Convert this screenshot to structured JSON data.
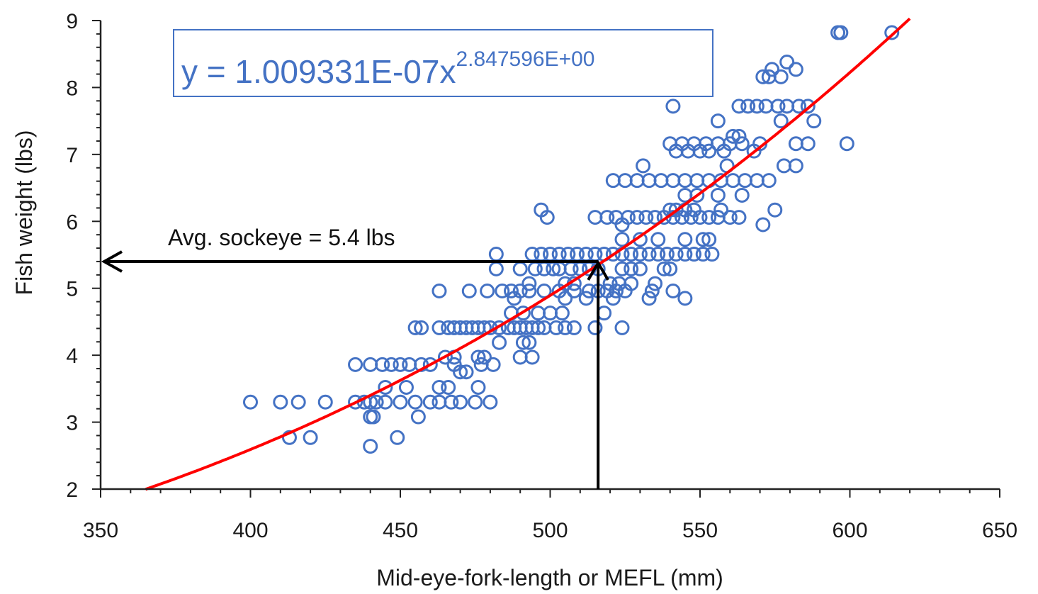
{
  "chart_data": {
    "type": "scatter",
    "title": "",
    "xlabel": "Mid-eye-fork-length or MEFL (mm)",
    "ylabel": "Fish weight (lbs)",
    "xlim": [
      350,
      650
    ],
    "ylim": [
      2,
      9
    ],
    "x_ticks": [
      "350",
      "400",
      "450",
      "500",
      "550",
      "600",
      "650"
    ],
    "y_ticks": [
      "2",
      "3",
      "4",
      "5",
      "6",
      "7",
      "8",
      "9"
    ],
    "grid": false,
    "legend": "none",
    "colors": {
      "points": "#4472C4",
      "trendline": "#FF0000",
      "annotation": "#000000",
      "equation": "#4472C4"
    },
    "equation": {
      "base": "y = 1.009331E-07x",
      "exponent": "2.847596E+00"
    },
    "trendline": {
      "type": "power",
      "a": 1.009331e-07,
      "b": 2.847596,
      "x_range": [
        365,
        620
      ]
    },
    "annotation": {
      "text": "Avg. sockeye = 5.4 lbs",
      "x": 516,
      "y": 5.4
    },
    "points": [
      [
        400,
        3.3
      ],
      [
        410,
        3.3
      ],
      [
        416,
        3.3
      ],
      [
        425,
        3.3
      ],
      [
        413,
        2.77
      ],
      [
        420,
        2.77
      ],
      [
        435,
        3.3
      ],
      [
        438,
        3.3
      ],
      [
        440,
        3.3
      ],
      [
        442,
        3.3
      ],
      [
        445,
        3.3
      ],
      [
        450,
        3.3
      ],
      [
        455,
        3.3
      ],
      [
        460,
        3.3
      ],
      [
        463,
        3.3
      ],
      [
        467,
        3.3
      ],
      [
        470,
        3.3
      ],
      [
        475,
        3.3
      ],
      [
        480,
        3.3
      ],
      [
        440,
        3.08
      ],
      [
        441,
        3.08
      ],
      [
        456,
        3.08
      ],
      [
        440,
        2.64
      ],
      [
        449,
        2.77
      ],
      [
        435,
        3.86
      ],
      [
        440,
        3.86
      ],
      [
        444,
        3.86
      ],
      [
        447,
        3.86
      ],
      [
        450,
        3.86
      ],
      [
        453,
        3.86
      ],
      [
        457,
        3.86
      ],
      [
        460,
        3.86
      ],
      [
        468,
        3.86
      ],
      [
        477,
        3.86
      ],
      [
        481,
        3.86
      ],
      [
        445,
        3.52
      ],
      [
        452,
        3.52
      ],
      [
        463,
        3.52
      ],
      [
        466,
        3.52
      ],
      [
        476,
        3.52
      ],
      [
        470,
        3.75
      ],
      [
        472,
        3.75
      ],
      [
        476,
        3.97
      ],
      [
        478,
        3.97
      ],
      [
        468,
        3.97
      ],
      [
        465,
        3.97
      ],
      [
        455,
        4.41
      ],
      [
        457,
        4.41
      ],
      [
        463,
        4.41
      ],
      [
        466,
        4.41
      ],
      [
        468,
        4.41
      ],
      [
        470,
        4.41
      ],
      [
        472,
        4.41
      ],
      [
        474,
        4.41
      ],
      [
        476,
        4.41
      ],
      [
        478,
        4.41
      ],
      [
        480,
        4.41
      ],
      [
        483,
        4.41
      ],
      [
        486,
        4.41
      ],
      [
        488,
        4.41
      ],
      [
        490,
        4.41
      ],
      [
        492,
        4.41
      ],
      [
        494,
        4.41
      ],
      [
        496,
        4.41
      ],
      [
        498,
        4.41
      ],
      [
        502,
        4.41
      ],
      [
        505,
        4.41
      ],
      [
        508,
        4.41
      ],
      [
        515,
        4.41
      ],
      [
        524,
        4.41
      ],
      [
        483,
        4.19
      ],
      [
        491,
        4.19
      ],
      [
        493,
        4.19
      ],
      [
        490,
        3.97
      ],
      [
        494,
        3.97
      ],
      [
        487,
        4.63
      ],
      [
        491,
        4.63
      ],
      [
        496,
        4.63
      ],
      [
        500,
        4.63
      ],
      [
        504,
        4.63
      ],
      [
        518,
        4.63
      ],
      [
        463,
        4.96
      ],
      [
        473,
        4.96
      ],
      [
        479,
        4.96
      ],
      [
        484,
        4.96
      ],
      [
        487,
        4.96
      ],
      [
        490,
        4.96
      ],
      [
        493,
        4.96
      ],
      [
        498,
        4.96
      ],
      [
        503,
        4.96
      ],
      [
        508,
        4.96
      ],
      [
        513,
        4.96
      ],
      [
        516,
        4.96
      ],
      [
        519,
        4.96
      ],
      [
        522,
        4.96
      ],
      [
        525,
        4.96
      ],
      [
        534,
        4.96
      ],
      [
        541,
        4.96
      ],
      [
        488,
        4.85
      ],
      [
        505,
        4.85
      ],
      [
        512,
        4.85
      ],
      [
        521,
        4.85
      ],
      [
        533,
        4.85
      ],
      [
        545,
        4.85
      ],
      [
        482,
        5.29
      ],
      [
        490,
        5.29
      ],
      [
        495,
        5.29
      ],
      [
        498,
        5.29
      ],
      [
        501,
        5.29
      ],
      [
        503,
        5.29
      ],
      [
        507,
        5.29
      ],
      [
        510,
        5.29
      ],
      [
        513,
        5.29
      ],
      [
        516,
        5.29
      ],
      [
        524,
        5.29
      ],
      [
        527,
        5.29
      ],
      [
        530,
        5.29
      ],
      [
        538,
        5.29
      ],
      [
        540,
        5.29
      ],
      [
        493,
        5.07
      ],
      [
        505,
        5.07
      ],
      [
        508,
        5.07
      ],
      [
        520,
        5.07
      ],
      [
        523,
        5.07
      ],
      [
        527,
        5.07
      ],
      [
        535,
        5.07
      ],
      [
        482,
        5.51
      ],
      [
        494,
        5.51
      ],
      [
        497,
        5.51
      ],
      [
        500,
        5.51
      ],
      [
        503,
        5.51
      ],
      [
        506,
        5.51
      ],
      [
        509,
        5.51
      ],
      [
        512,
        5.51
      ],
      [
        515,
        5.51
      ],
      [
        518,
        5.51
      ],
      [
        521,
        5.51
      ],
      [
        524,
        5.51
      ],
      [
        527,
        5.51
      ],
      [
        530,
        5.51
      ],
      [
        533,
        5.51
      ],
      [
        536,
        5.51
      ],
      [
        539,
        5.51
      ],
      [
        542,
        5.51
      ],
      [
        545,
        5.51
      ],
      [
        548,
        5.51
      ],
      [
        551,
        5.51
      ],
      [
        554,
        5.51
      ],
      [
        524,
        5.73
      ],
      [
        530,
        5.73
      ],
      [
        536,
        5.73
      ],
      [
        545,
        5.73
      ],
      [
        551,
        5.73
      ],
      [
        553,
        5.73
      ],
      [
        515,
        6.06
      ],
      [
        519,
        6.06
      ],
      [
        522,
        6.06
      ],
      [
        526,
        6.06
      ],
      [
        529,
        6.06
      ],
      [
        532,
        6.06
      ],
      [
        535,
        6.06
      ],
      [
        538,
        6.06
      ],
      [
        541,
        6.06
      ],
      [
        544,
        6.06
      ],
      [
        547,
        6.06
      ],
      [
        550,
        6.06
      ],
      [
        553,
        6.06
      ],
      [
        556,
        6.06
      ],
      [
        560,
        6.06
      ],
      [
        497,
        6.17
      ],
      [
        499,
        6.06
      ],
      [
        524,
        5.95
      ],
      [
        540,
        6.17
      ],
      [
        542,
        6.17
      ],
      [
        545,
        6.17
      ],
      [
        548,
        6.17
      ],
      [
        557,
        6.17
      ],
      [
        563,
        6.06
      ],
      [
        571,
        5.95
      ],
      [
        575,
        6.17
      ],
      [
        521,
        6.61
      ],
      [
        525,
        6.61
      ],
      [
        529,
        6.61
      ],
      [
        533,
        6.61
      ],
      [
        537,
        6.61
      ],
      [
        541,
        6.61
      ],
      [
        545,
        6.61
      ],
      [
        549,
        6.61
      ],
      [
        553,
        6.61
      ],
      [
        557,
        6.61
      ],
      [
        561,
        6.61
      ],
      [
        565,
        6.61
      ],
      [
        569,
        6.61
      ],
      [
        573,
        6.61
      ],
      [
        531,
        6.83
      ],
      [
        545,
        6.39
      ],
      [
        549,
        6.39
      ],
      [
        556,
        6.39
      ],
      [
        564,
        6.39
      ],
      [
        559,
        6.83
      ],
      [
        578,
        6.83
      ],
      [
        582,
        6.83
      ],
      [
        542,
        7.05
      ],
      [
        546,
        7.05
      ],
      [
        550,
        7.05
      ],
      [
        553,
        7.05
      ],
      [
        558,
        7.05
      ],
      [
        568,
        7.05
      ],
      [
        540,
        7.16
      ],
      [
        544,
        7.16
      ],
      [
        548,
        7.16
      ],
      [
        552,
        7.16
      ],
      [
        556,
        7.16
      ],
      [
        560,
        7.16
      ],
      [
        564,
        7.16
      ],
      [
        570,
        7.16
      ],
      [
        582,
        7.16
      ],
      [
        586,
        7.16
      ],
      [
        599,
        7.16
      ],
      [
        561,
        7.27
      ],
      [
        563,
        7.27
      ],
      [
        541,
        7.72
      ],
      [
        563,
        7.72
      ],
      [
        566,
        7.72
      ],
      [
        569,
        7.72
      ],
      [
        572,
        7.72
      ],
      [
        576,
        7.72
      ],
      [
        579,
        7.72
      ],
      [
        583,
        7.72
      ],
      [
        586,
        7.72
      ],
      [
        577,
        7.5
      ],
      [
        588,
        7.5
      ],
      [
        556,
        7.5
      ],
      [
        571,
        8.16
      ],
      [
        573,
        8.16
      ],
      [
        577,
        8.16
      ],
      [
        574,
        8.27
      ],
      [
        579,
        8.38
      ],
      [
        582,
        8.27
      ],
      [
        596,
        8.82
      ],
      [
        597,
        8.82
      ],
      [
        614,
        8.82
      ]
    ]
  }
}
